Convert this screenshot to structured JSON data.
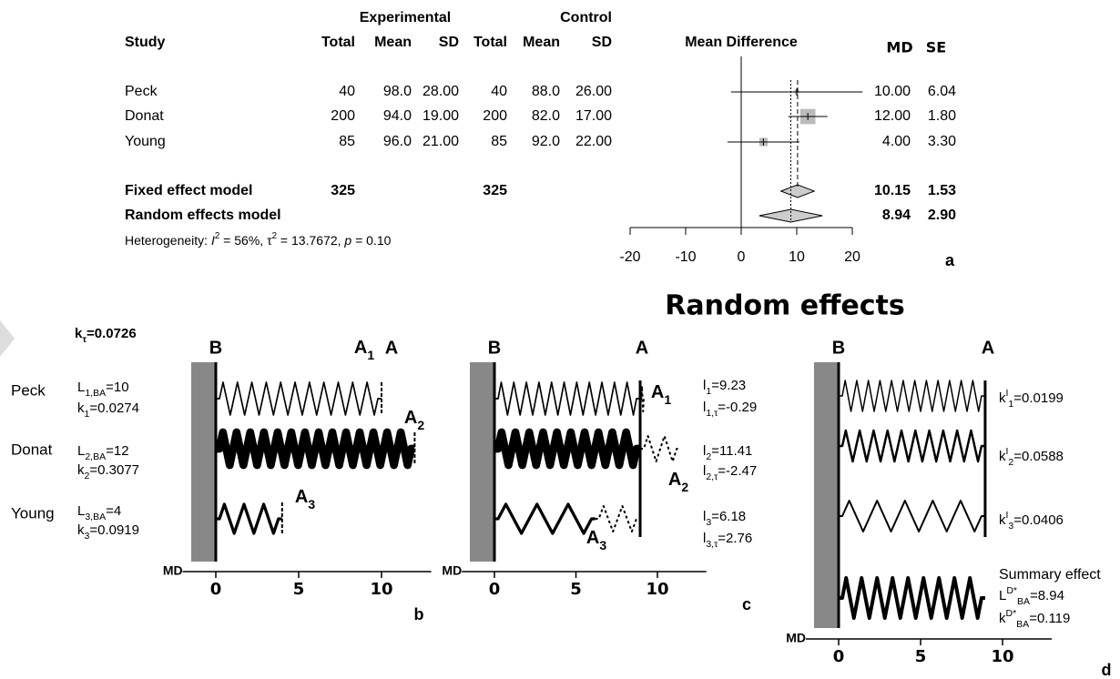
{
  "forest": {
    "header": {
      "experimental": "Experimental",
      "control": "Control",
      "study": "Study",
      "e_total": "Total",
      "e_mean": "Mean",
      "e_sd": "SD",
      "c_total": "Total",
      "c_mean": "Mean",
      "c_sd": "SD",
      "plot": "Mean Difference",
      "md": "MD",
      "se": "SE"
    },
    "rows": [
      {
        "study": "Peck",
        "e_total": 40,
        "e_mean": "98.0",
        "e_sd": "28.00",
        "c_total": 40,
        "c_mean": "88.0",
        "c_sd": "26.00",
        "md": {
          "value": 10,
          "label": "10.00"
        },
        "se": {
          "value": 6.04,
          "label": "6.04"
        }
      },
      {
        "study": "Donat",
        "e_total": 200,
        "e_mean": "94.0",
        "e_sd": "19.00",
        "c_total": 200,
        "c_mean": "82.0",
        "c_sd": "17.00",
        "md": {
          "value": 12,
          "label": "12.00"
        },
        "se": {
          "value": 1.8,
          "label": "1.80"
        }
      },
      {
        "study": "Young",
        "e_total": 85,
        "e_mean": "96.0",
        "e_sd": "21.00",
        "c_total": 85,
        "c_mean": "92.0",
        "c_sd": "22.00",
        "md": {
          "value": 4,
          "label": "4.00"
        },
        "se": {
          "value": 3.3,
          "label": "3.30"
        }
      }
    ],
    "fixed": {
      "study": "Fixed effect model",
      "e_total": 325,
      "c_total": 325,
      "md": {
        "value": 10.15,
        "label": "10.15"
      },
      "se": {
        "value": 1.53,
        "label": "1.53"
      }
    },
    "random": {
      "study": "Random effects model",
      "md": {
        "value": 8.94,
        "label": "8.94"
      },
      "se": {
        "value": 2.9,
        "label": "2.90"
      }
    },
    "heterogeneity": [
      "Heterogeneity: ",
      "I",
      "2",
      " = 56%, ",
      "τ",
      "2",
      " = 13.7672, ",
      "p",
      " = 0.10"
    ],
    "xlim": [
      -20,
      20
    ],
    "xticks": [
      -20,
      -10,
      0,
      10,
      20
    ],
    "panel": "a"
  },
  "springs": {
    "title": "Random effects",
    "axis_label": "MD",
    "xlim": [
      -2,
      13
    ],
    "xticks": [
      0,
      5,
      10
    ],
    "k_tau": {
      "sym": "k",
      "sub": "τ",
      "val": {
        "value": 0.0726,
        "label": "=0.0726"
      }
    },
    "studies": [
      "Peck",
      "Donat",
      "Young"
    ],
    "b": {
      "panel": "b",
      "wall": "B",
      "end": "A",
      "ends": [
        {
          "sym": "A",
          "sub": "1"
        },
        {
          "sym": "A",
          "sub": "2"
        },
        {
          "sym": "A",
          "sub": "3"
        }
      ],
      "L": [
        {
          "sym": "L",
          "sub": "1,BA",
          "val": {
            "value": 10,
            "label": "=10"
          }
        },
        {
          "sym": "L",
          "sub": "2,BA",
          "val": {
            "value": 12,
            "label": "=12"
          }
        },
        {
          "sym": "L",
          "sub": "3,BA",
          "val": {
            "value": 4,
            "label": "=4"
          }
        }
      ],
      "k": [
        {
          "sym": "k",
          "sub": "1",
          "val": {
            "value": 0.0274,
            "label": "=0.0274"
          }
        },
        {
          "sym": "k",
          "sub": "2",
          "val": {
            "value": 0.3077,
            "label": "=0.3077"
          }
        },
        {
          "sym": "k",
          "sub": "3",
          "val": {
            "value": 0.0919,
            "label": "=0.0919"
          }
        }
      ]
    },
    "c": {
      "panel": "c",
      "wall": "B",
      "end": "A",
      "ends": [
        {
          "sym": "A",
          "sub": "1"
        },
        {
          "sym": "A",
          "sub": "2"
        },
        {
          "sym": "A",
          "sub": "3"
        }
      ],
      "l": [
        {
          "sym": "l",
          "sub": "1",
          "val": {
            "value": 9.23,
            "label": "=9.23"
          }
        },
        {
          "sym": "l",
          "sub": "2",
          "val": {
            "value": 11.41,
            "label": "=11.41"
          }
        },
        {
          "sym": "l",
          "sub": "3",
          "val": {
            "value": 6.18,
            "label": "=6.18"
          }
        }
      ],
      "l_tau": [
        {
          "sym": "l",
          "sub": "1,τ",
          "val": {
            "value": -0.29,
            "label": "=-0.29"
          }
        },
        {
          "sym": "l",
          "sub": "2,τ",
          "val": {
            "value": -2.47,
            "label": "=-2.47"
          }
        },
        {
          "sym": "l",
          "sub": "3,τ",
          "val": {
            "value": 2.76,
            "label": "=2.76"
          }
        }
      ]
    },
    "d": {
      "panel": "d",
      "wall": "B",
      "end": "A",
      "k": [
        {
          "sym": "k",
          "sup": "I",
          "sub": "1",
          "val": {
            "value": 0.0199,
            "label": "=0.0199"
          }
        },
        {
          "sym": "k",
          "sup": "I",
          "sub": "2",
          "val": {
            "value": 0.0588,
            "label": "=0.0588"
          }
        },
        {
          "sym": "k",
          "sup": "I",
          "sub": "3",
          "val": {
            "value": 0.0406,
            "label": "=0.0406"
          }
        }
      ],
      "summary": {
        "title": "Summary effect",
        "L": {
          "sym": "L",
          "sup": "D*",
          "sub": "BA",
          "val": {
            "value": 8.94,
            "label": "=8.94"
          }
        },
        "k": {
          "sym": "k",
          "sup": "D*",
          "sub": "BA",
          "val": {
            "value": 0.119,
            "label": "=0.119"
          }
        }
      }
    }
  }
}
